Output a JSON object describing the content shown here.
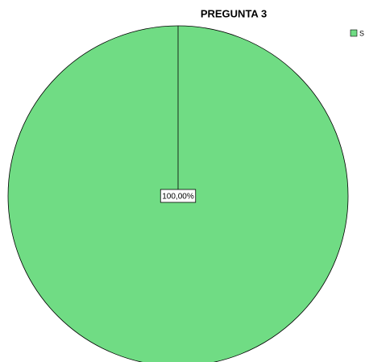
{
  "chart_data": {
    "type": "pie",
    "title": "PREGUNTA 3",
    "categories": [
      "S"
    ],
    "values": [
      100
    ],
    "value_labels": [
      "100,00%"
    ],
    "colors": [
      "#70dc84"
    ],
    "legend": "top-right"
  }
}
